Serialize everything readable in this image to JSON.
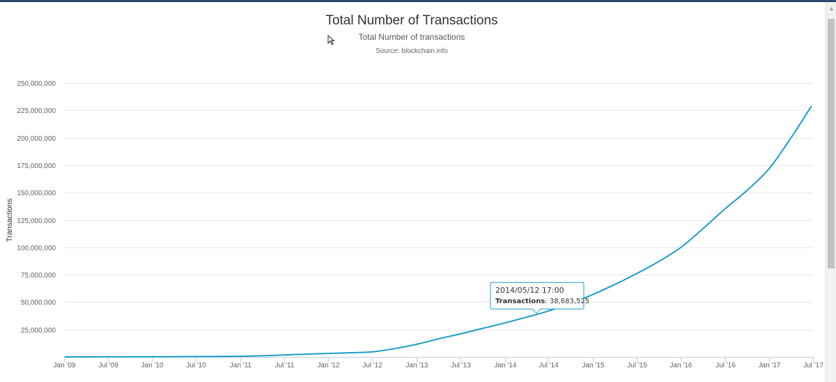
{
  "colors": {
    "series": "#1a9dc8",
    "grid": "#e6e6e6",
    "tooltip_border": "#1a9dc8"
  },
  "icons": {
    "cursor": "mouse-pointer-icon",
    "scroll_up": "chevron-up-icon"
  },
  "chart_data": {
    "type": "line",
    "title": "Total Number of Transactions",
    "subtitle": "Total Number of transactions",
    "source": "Source: blockchain.info",
    "xlabel": "",
    "ylabel": "Transactions",
    "ylim": [
      0,
      250000000
    ],
    "xlim": [
      "2009-01-01",
      "2017-07-01"
    ],
    "yticks": [
      0,
      25000000,
      50000000,
      75000000,
      100000000,
      125000000,
      150000000,
      175000000,
      200000000,
      225000000,
      250000000
    ],
    "ytick_labels": [
      "",
      "25,000,000",
      "50,000,000",
      "75,000,000",
      "100,000,000",
      "125,000,000",
      "150,000,000",
      "175,000,000",
      "200,000,000",
      "225,000,000",
      "250,000,000"
    ],
    "xticks": [
      "2009-01-01",
      "2009-07-01",
      "2010-01-01",
      "2010-07-01",
      "2011-01-01",
      "2011-07-01",
      "2012-01-01",
      "2012-07-01",
      "2013-01-01",
      "2013-07-01",
      "2014-01-01",
      "2014-07-01",
      "2015-01-01",
      "2015-07-01",
      "2016-01-01",
      "2016-07-01",
      "2017-01-01",
      "2017-07-01"
    ],
    "xtick_labels": [
      "Jan '09",
      "Jul '09",
      "Jan '10",
      "Jul '10",
      "Jan '11",
      "Jul '11",
      "Jan '12",
      "Jul '12",
      "Jan '13",
      "Jul '13",
      "Jan '14",
      "Jul '14",
      "Jan '15",
      "Jul '15",
      "Jan '16",
      "Jul '16",
      "Jan '17",
      "Jul '17"
    ],
    "grid": true,
    "legend": "none",
    "series": [
      {
        "name": "Transactions",
        "x": [
          "2009-01-03",
          "2009-07-01",
          "2010-01-01",
          "2010-07-01",
          "2011-01-01",
          "2011-04-01",
          "2011-07-01",
          "2011-10-01",
          "2012-01-01",
          "2012-04-01",
          "2012-07-01",
          "2012-10-01",
          "2013-01-01",
          "2013-04-01",
          "2013-07-01",
          "2013-10-01",
          "2014-01-01",
          "2014-05-12",
          "2014-07-01",
          "2014-10-01",
          "2015-01-01",
          "2015-04-01",
          "2015-07-01",
          "2015-10-01",
          "2016-01-01",
          "2016-04-01",
          "2016-07-01",
          "2016-10-01",
          "2017-01-01",
          "2017-04-01",
          "2017-06-25"
        ],
        "values": [
          0,
          60000,
          120000,
          300000,
          600000,
          1000000,
          1800000,
          2500000,
          3200000,
          3800000,
          4600000,
          7500000,
          11500000,
          16500000,
          21000000,
          26000000,
          31000000,
          38683525,
          42000000,
          49000000,
          57000000,
          66000000,
          76000000,
          87000000,
          100000000,
          117000000,
          135000000,
          152000000,
          172000000,
          200000000,
          229000000
        ]
      }
    ],
    "tooltip": {
      "date": "2014/05/12 17:00",
      "series_label": "Transactions",
      "value_text": ": 38,683,525",
      "x": "2014-05-12",
      "y": 38683525
    }
  }
}
